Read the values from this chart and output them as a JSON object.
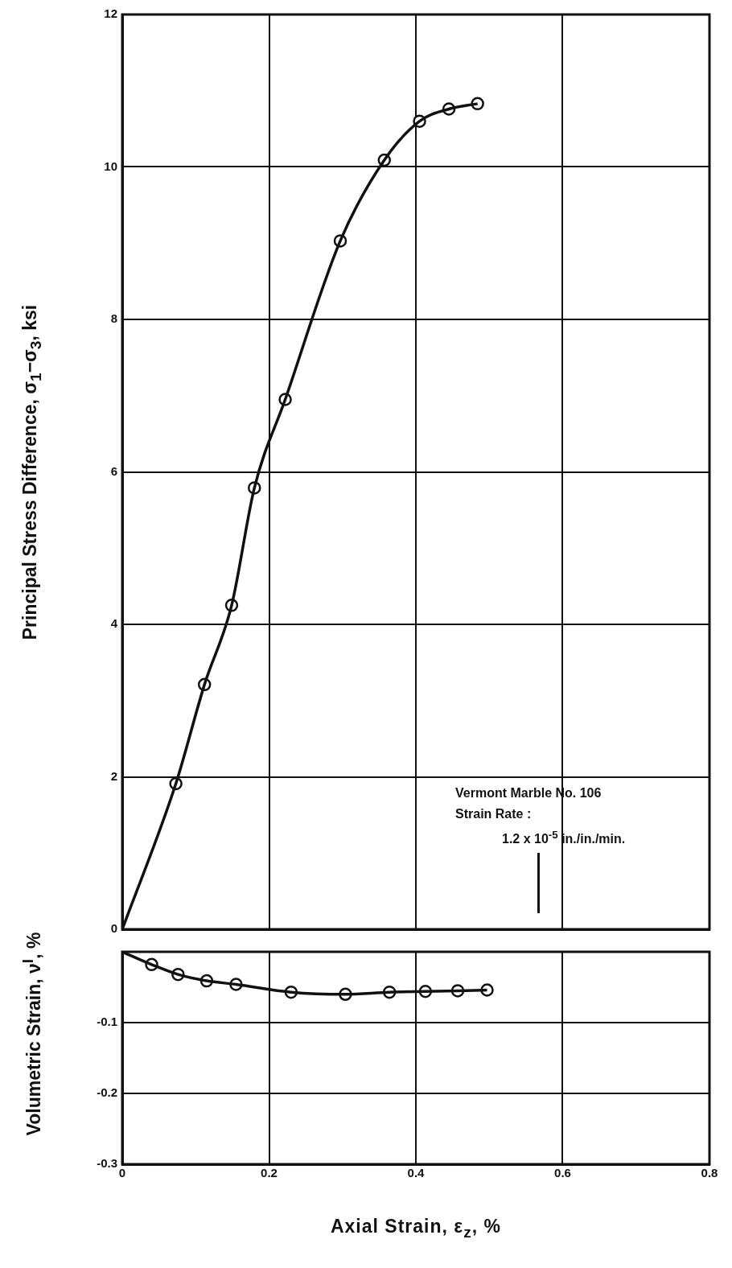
{
  "chart_data": [
    {
      "type": "line",
      "ylabel": "Principal Stress Difference, σ$_{1}$−σ$_{3}$, ksi",
      "annotations": [
        "Vermont Marble No. 106",
        "Strain Rate :",
        "1.2 x 10$^{-5}$ in./in./min."
      ],
      "series": [
        {
          "type": "line",
          "marker": "none",
          "color": "#111111",
          "x": [
            0,
            0.073,
            0.112,
            0.149,
            0.18,
            0.222,
            0.297,
            0.357,
            0.405,
            0.445,
            0.484
          ],
          "values": [
            0,
            1.91,
            3.21,
            4.25,
            5.79,
            6.95,
            9.03,
            10.09,
            10.6,
            10.76,
            10.83
          ]
        },
        {
          "type": "scatter",
          "marker": "circle",
          "color": "#111111",
          "x": [
            0.073,
            0.112,
            0.149,
            0.18,
            0.222,
            0.297,
            0.357,
            0.405,
            0.445,
            0.484
          ],
          "values": [
            1.91,
            3.21,
            4.25,
            5.79,
            6.95,
            9.03,
            10.09,
            10.6,
            10.76,
            10.83
          ]
        }
      ],
      "xlim": [
        0,
        0.8
      ],
      "xticks": [
        0,
        0.2,
        0.4,
        0.6,
        0.8
      ],
      "ylim": [
        0,
        12
      ],
      "yticks": [
        0,
        2,
        4,
        6,
        8,
        10,
        12
      ],
      "grid": true,
      "tick_labels": "y"
    },
    {
      "type": "line",
      "ylabel": "Volumetric Strain, ν$^{I}$, %",
      "xlabel": "Axial Strain, ε$_{z}$, %",
      "series": [
        {
          "type": "line",
          "marker": "none",
          "color": "#111111",
          "x": [
            0,
            0.04,
            0.076,
            0.115,
            0.155,
            0.23,
            0.304,
            0.364,
            0.413,
            0.457,
            0.497
          ],
          "values": [
            0,
            -0.018,
            -0.032,
            -0.041,
            -0.046,
            -0.057,
            -0.06,
            -0.057,
            -0.056,
            -0.055,
            -0.054
          ]
        },
        {
          "type": "scatter",
          "marker": "circle",
          "color": "#111111",
          "x": [
            0.04,
            0.076,
            0.115,
            0.155,
            0.23,
            0.304,
            0.364,
            0.413,
            0.457,
            0.497
          ],
          "values": [
            -0.018,
            -0.032,
            -0.041,
            -0.046,
            -0.057,
            -0.06,
            -0.057,
            -0.056,
            -0.055,
            -0.054
          ]
        }
      ],
      "xlim": [
        0,
        0.8
      ],
      "xticks": [
        0,
        0.2,
        0.4,
        0.6,
        0.8
      ],
      "ylim": [
        -0.3,
        0
      ],
      "yticks": [
        -0.3,
        -0.2,
        -0.1
      ],
      "grid": true
    }
  ]
}
